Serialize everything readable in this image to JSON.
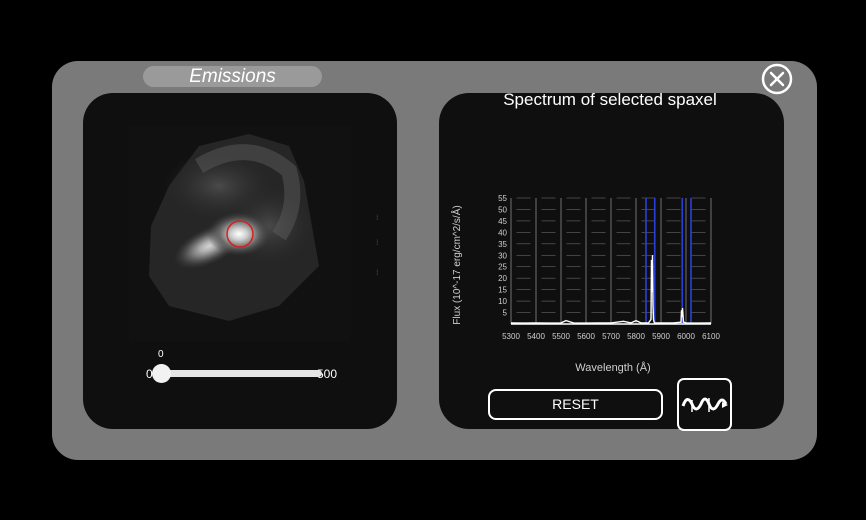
{
  "window": {
    "title": "Emissions",
    "close_icon": "close-circle-icon"
  },
  "left_panel": {
    "slider": {
      "current_value": "0",
      "min_label": "0",
      "max_label": "500"
    }
  },
  "right_panel": {
    "title": "Spectrum of selected spaxel",
    "reset_label": "RESET",
    "spectrum_icon": "spectrum-wave-icon"
  },
  "chart_data": {
    "type": "line",
    "title": "",
    "xlabel": "Wavelength (Å)",
    "ylabel": "Flux (10^-17 erg/cm^2/s/Å)",
    "xlim": [
      5300,
      6100
    ],
    "ylim": [
      0,
      55
    ],
    "x_ticks": [
      "5300",
      "5400",
      "5500",
      "5600",
      "5700",
      "5800",
      "5900",
      "6000",
      "6100"
    ],
    "y_ticks": [
      "5",
      "10",
      "15",
      "20",
      "25",
      "30",
      "35",
      "40",
      "45",
      "50",
      "55"
    ],
    "grid": true,
    "series": [
      {
        "x": [
          5300,
          5350,
          5400,
          5450,
          5500,
          5520,
          5550,
          5600,
          5650,
          5700,
          5750,
          5780,
          5800,
          5820,
          5850,
          5860,
          5862,
          5864,
          5866,
          5868,
          5870,
          5872,
          5874,
          5880,
          5900,
          5950,
          5980,
          5982,
          5984,
          5986,
          5990,
          6000,
          6050,
          6100
        ],
        "y": [
          0.5,
          0.4,
          0.5,
          0.4,
          0.5,
          1.5,
          0.5,
          0.4,
          0.5,
          0.5,
          1.2,
          0.5,
          1.5,
          0.5,
          0.5,
          2,
          28,
          14,
          30,
          8,
          2,
          1,
          0.5,
          0.5,
          0.5,
          0.5,
          0.8,
          6,
          3,
          7,
          0.8,
          0.5,
          0.4,
          0.5
        ]
      }
    ],
    "markers": [
      5840,
      5875,
      5985,
      6020
    ],
    "marker_color": "#2b3fd6",
    "line_color": "#ffffff"
  }
}
